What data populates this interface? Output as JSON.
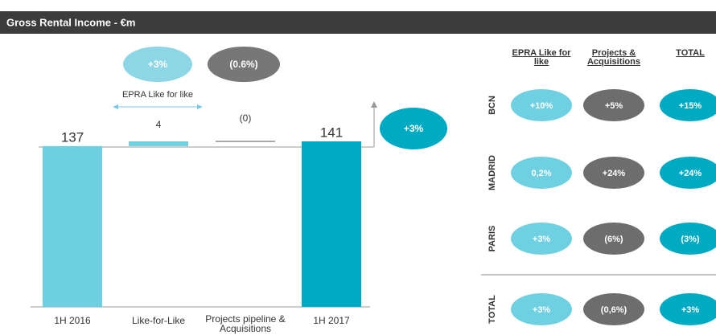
{
  "header": {
    "title": "Gross Rental Income - €m"
  },
  "chart_data": {
    "type": "waterfall",
    "categories": [
      "1H 2016",
      "Like-for-Like",
      "Projects pipeline & Acquisitions",
      "1H 2017"
    ],
    "values": [
      137,
      4,
      0,
      141
    ],
    "value_labels": [
      "137",
      "4",
      "(0)",
      "141"
    ],
    "colors": [
      "#6ecfe0",
      "#6ecfe0",
      "#6ecfe0",
      "#00a9c4"
    ],
    "ylim": [
      0,
      141
    ],
    "annotations": [
      "+3%",
      "(0.6%)",
      "EPRA Like for like",
      "+3%"
    ]
  },
  "table": {
    "columns": [
      "EPRA Like for like",
      "Projects & Acquisitions",
      "TOTAL"
    ],
    "rows": [
      [
        "BCN",
        "+10%",
        "+5%",
        "+15%"
      ],
      [
        "MADRID",
        "0,2%",
        "+24%",
        "+24%"
      ],
      [
        "PARIS",
        "+3%",
        "(6%)",
        "(3%)"
      ],
      [
        "TOTAL",
        "+3%",
        "(0,6%)",
        "+3%"
      ]
    ]
  }
}
